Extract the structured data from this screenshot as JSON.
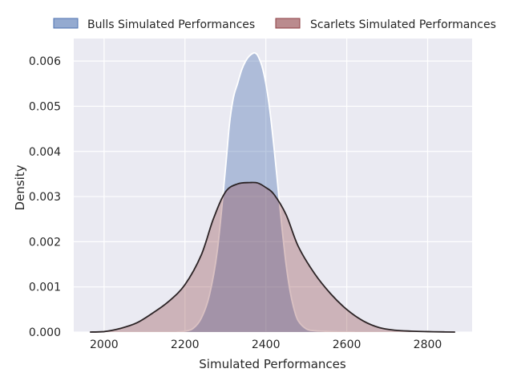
{
  "chart_data": {
    "type": "area",
    "xlabel": "Simulated Performances",
    "ylabel": "Density",
    "xlim": [
      1925,
      2910
    ],
    "ylim": [
      0,
      0.0065
    ],
    "x_ticks": [
      "2000",
      "2200",
      "2400",
      "2600",
      "2800"
    ],
    "y_ticks": [
      "0.000",
      "0.001",
      "0.002",
      "0.003",
      "0.004",
      "0.005",
      "0.006"
    ],
    "grid": true,
    "legend_position": "top",
    "background": "#eaeaf2",
    "series": [
      {
        "name": "Bulls Simulated Performances",
        "color": "#4c72b0",
        "x": [
          2180,
          2200,
          2220,
          2240,
          2260,
          2280,
          2300,
          2310,
          2320,
          2330,
          2340,
          2350,
          2360,
          2370,
          2375,
          2380,
          2390,
          2400,
          2410,
          2420,
          2430,
          2440,
          2450,
          2460,
          2470,
          2480,
          2500,
          2520,
          2540,
          2560,
          2580,
          2600,
          2620
        ],
        "y": [
          0.0,
          2e-05,
          8e-05,
          0.0003,
          0.0008,
          0.0018,
          0.0036,
          0.0046,
          0.0052,
          0.0055,
          0.0058,
          0.006,
          0.00612,
          0.00618,
          0.00617,
          0.00612,
          0.0059,
          0.0055,
          0.0049,
          0.0041,
          0.0032,
          0.0023,
          0.0015,
          0.0009,
          0.0005,
          0.00025,
          7e-05,
          3e-05,
          2e-05,
          1e-05,
          5e-06,
          2e-06,
          0.0
        ]
      },
      {
        "name": "Scarlets Simulated Performances",
        "color": "#8c3d42",
        "x": [
          1965,
          2000,
          2040,
          2080,
          2120,
          2160,
          2200,
          2240,
          2270,
          2300,
          2330,
          2360,
          2380,
          2400,
          2420,
          2450,
          2480,
          2520,
          2560,
          2600,
          2640,
          2680,
          2720,
          2760,
          2800,
          2840,
          2868
        ],
        "y": [
          0.0,
          1e-05,
          8e-05,
          0.0002,
          0.00042,
          0.00068,
          0.00105,
          0.0017,
          0.0025,
          0.0031,
          0.00328,
          0.00331,
          0.0033,
          0.0032,
          0.00305,
          0.0026,
          0.0019,
          0.0013,
          0.00085,
          0.0005,
          0.00025,
          0.0001,
          4e-05,
          2e-05,
          1e-05,
          3e-06,
          0.0
        ]
      }
    ]
  }
}
